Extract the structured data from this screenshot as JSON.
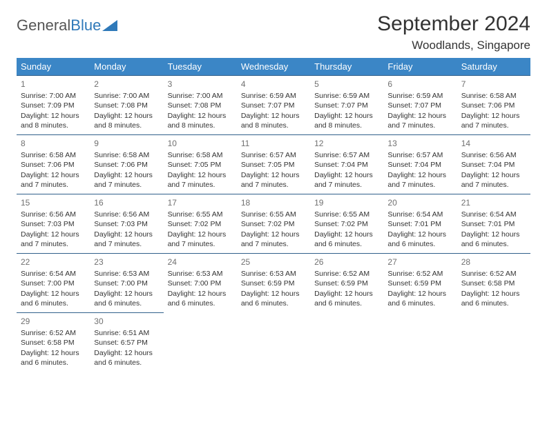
{
  "logo": {
    "text1": "General",
    "text2": "Blue"
  },
  "title": "September 2024",
  "location": "Woodlands, Singapore",
  "colors": {
    "header_bg": "#3b86c6",
    "header_fg": "#ffffff",
    "row_border": "#2f5f8a",
    "day_num": "#707070",
    "text": "#333333",
    "logo_gray": "#555555",
    "logo_blue": "#2f79b9"
  },
  "day_headers": [
    "Sunday",
    "Monday",
    "Tuesday",
    "Wednesday",
    "Thursday",
    "Friday",
    "Saturday"
  ],
  "weeks": [
    [
      {
        "n": "1",
        "sr": "Sunrise: 7:00 AM",
        "ss": "Sunset: 7:09 PM",
        "d1": "Daylight: 12 hours",
        "d2": "and 8 minutes."
      },
      {
        "n": "2",
        "sr": "Sunrise: 7:00 AM",
        "ss": "Sunset: 7:08 PM",
        "d1": "Daylight: 12 hours",
        "d2": "and 8 minutes."
      },
      {
        "n": "3",
        "sr": "Sunrise: 7:00 AM",
        "ss": "Sunset: 7:08 PM",
        "d1": "Daylight: 12 hours",
        "d2": "and 8 minutes."
      },
      {
        "n": "4",
        "sr": "Sunrise: 6:59 AM",
        "ss": "Sunset: 7:07 PM",
        "d1": "Daylight: 12 hours",
        "d2": "and 8 minutes."
      },
      {
        "n": "5",
        "sr": "Sunrise: 6:59 AM",
        "ss": "Sunset: 7:07 PM",
        "d1": "Daylight: 12 hours",
        "d2": "and 8 minutes."
      },
      {
        "n": "6",
        "sr": "Sunrise: 6:59 AM",
        "ss": "Sunset: 7:07 PM",
        "d1": "Daylight: 12 hours",
        "d2": "and 7 minutes."
      },
      {
        "n": "7",
        "sr": "Sunrise: 6:58 AM",
        "ss": "Sunset: 7:06 PM",
        "d1": "Daylight: 12 hours",
        "d2": "and 7 minutes."
      }
    ],
    [
      {
        "n": "8",
        "sr": "Sunrise: 6:58 AM",
        "ss": "Sunset: 7:06 PM",
        "d1": "Daylight: 12 hours",
        "d2": "and 7 minutes."
      },
      {
        "n": "9",
        "sr": "Sunrise: 6:58 AM",
        "ss": "Sunset: 7:06 PM",
        "d1": "Daylight: 12 hours",
        "d2": "and 7 minutes."
      },
      {
        "n": "10",
        "sr": "Sunrise: 6:58 AM",
        "ss": "Sunset: 7:05 PM",
        "d1": "Daylight: 12 hours",
        "d2": "and 7 minutes."
      },
      {
        "n": "11",
        "sr": "Sunrise: 6:57 AM",
        "ss": "Sunset: 7:05 PM",
        "d1": "Daylight: 12 hours",
        "d2": "and 7 minutes."
      },
      {
        "n": "12",
        "sr": "Sunrise: 6:57 AM",
        "ss": "Sunset: 7:04 PM",
        "d1": "Daylight: 12 hours",
        "d2": "and 7 minutes."
      },
      {
        "n": "13",
        "sr": "Sunrise: 6:57 AM",
        "ss": "Sunset: 7:04 PM",
        "d1": "Daylight: 12 hours",
        "d2": "and 7 minutes."
      },
      {
        "n": "14",
        "sr": "Sunrise: 6:56 AM",
        "ss": "Sunset: 7:04 PM",
        "d1": "Daylight: 12 hours",
        "d2": "and 7 minutes."
      }
    ],
    [
      {
        "n": "15",
        "sr": "Sunrise: 6:56 AM",
        "ss": "Sunset: 7:03 PM",
        "d1": "Daylight: 12 hours",
        "d2": "and 7 minutes."
      },
      {
        "n": "16",
        "sr": "Sunrise: 6:56 AM",
        "ss": "Sunset: 7:03 PM",
        "d1": "Daylight: 12 hours",
        "d2": "and 7 minutes."
      },
      {
        "n": "17",
        "sr": "Sunrise: 6:55 AM",
        "ss": "Sunset: 7:02 PM",
        "d1": "Daylight: 12 hours",
        "d2": "and 7 minutes."
      },
      {
        "n": "18",
        "sr": "Sunrise: 6:55 AM",
        "ss": "Sunset: 7:02 PM",
        "d1": "Daylight: 12 hours",
        "d2": "and 7 minutes."
      },
      {
        "n": "19",
        "sr": "Sunrise: 6:55 AM",
        "ss": "Sunset: 7:02 PM",
        "d1": "Daylight: 12 hours",
        "d2": "and 6 minutes."
      },
      {
        "n": "20",
        "sr": "Sunrise: 6:54 AM",
        "ss": "Sunset: 7:01 PM",
        "d1": "Daylight: 12 hours",
        "d2": "and 6 minutes."
      },
      {
        "n": "21",
        "sr": "Sunrise: 6:54 AM",
        "ss": "Sunset: 7:01 PM",
        "d1": "Daylight: 12 hours",
        "d2": "and 6 minutes."
      }
    ],
    [
      {
        "n": "22",
        "sr": "Sunrise: 6:54 AM",
        "ss": "Sunset: 7:00 PM",
        "d1": "Daylight: 12 hours",
        "d2": "and 6 minutes."
      },
      {
        "n": "23",
        "sr": "Sunrise: 6:53 AM",
        "ss": "Sunset: 7:00 PM",
        "d1": "Daylight: 12 hours",
        "d2": "and 6 minutes."
      },
      {
        "n": "24",
        "sr": "Sunrise: 6:53 AM",
        "ss": "Sunset: 7:00 PM",
        "d1": "Daylight: 12 hours",
        "d2": "and 6 minutes."
      },
      {
        "n": "25",
        "sr": "Sunrise: 6:53 AM",
        "ss": "Sunset: 6:59 PM",
        "d1": "Daylight: 12 hours",
        "d2": "and 6 minutes."
      },
      {
        "n": "26",
        "sr": "Sunrise: 6:52 AM",
        "ss": "Sunset: 6:59 PM",
        "d1": "Daylight: 12 hours",
        "d2": "and 6 minutes."
      },
      {
        "n": "27",
        "sr": "Sunrise: 6:52 AM",
        "ss": "Sunset: 6:59 PM",
        "d1": "Daylight: 12 hours",
        "d2": "and 6 minutes."
      },
      {
        "n": "28",
        "sr": "Sunrise: 6:52 AM",
        "ss": "Sunset: 6:58 PM",
        "d1": "Daylight: 12 hours",
        "d2": "and 6 minutes."
      }
    ],
    [
      {
        "n": "29",
        "sr": "Sunrise: 6:52 AM",
        "ss": "Sunset: 6:58 PM",
        "d1": "Daylight: 12 hours",
        "d2": "and 6 minutes."
      },
      {
        "n": "30",
        "sr": "Sunrise: 6:51 AM",
        "ss": "Sunset: 6:57 PM",
        "d1": "Daylight: 12 hours",
        "d2": "and 6 minutes."
      },
      null,
      null,
      null,
      null,
      null
    ]
  ]
}
